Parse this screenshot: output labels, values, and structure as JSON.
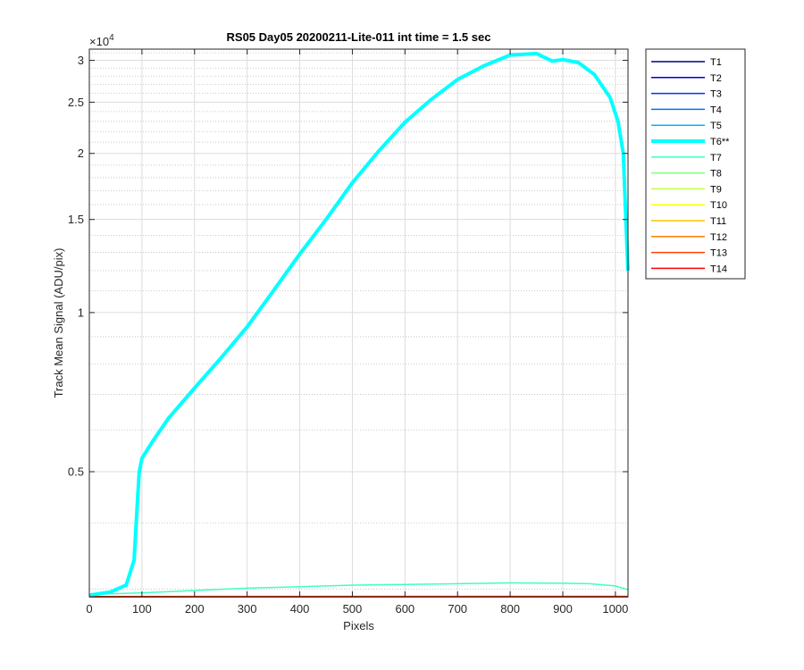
{
  "chart_data": {
    "type": "line",
    "title": "RS05 Day05 20200211-Lite-011 int time = 1.5 sec",
    "xlabel": "Pixels",
    "ylabel": "Track Mean Signal (ADU/pix)",
    "y_exponent_label": "×10",
    "y_exponent_power": "4",
    "y_scale": "log",
    "xlim": [
      0,
      1024
    ],
    "ylim": [
      2900,
      31500
    ],
    "x_ticks": [
      0,
      100,
      200,
      300,
      400,
      500,
      600,
      700,
      800,
      900,
      1000
    ],
    "x_tick_labels": [
      "0",
      "100",
      "200",
      "300",
      "400",
      "500",
      "600",
      "700",
      "800",
      "900",
      "1000"
    ],
    "y_ticks": [
      5000,
      10000,
      15000,
      20000,
      25000,
      30000
    ],
    "y_tick_labels": [
      "0.5",
      "1",
      "1.5",
      "2",
      "2.5",
      "3"
    ],
    "grid": true,
    "minor_grid": true,
    "legend_position": "outside-right",
    "series": [
      {
        "name": "T1",
        "color": "#00007f",
        "width": 1.5,
        "x": [
          0,
          1024
        ],
        "y": [
          2900,
          2900
        ]
      },
      {
        "name": "T2",
        "color": "#0000c8",
        "width": 1.5,
        "x": [
          0,
          1024
        ],
        "y": [
          2900,
          2900
        ]
      },
      {
        "name": "T3",
        "color": "#0032ff",
        "width": 1.5,
        "x": [
          0,
          1024
        ],
        "y": [
          2900,
          2900
        ]
      },
      {
        "name": "T4",
        "color": "#0070ff",
        "width": 1.5,
        "x": [
          0,
          1024
        ],
        "y": [
          2900,
          2900
        ]
      },
      {
        "name": "T5",
        "color": "#00b4ff",
        "width": 1.5,
        "x": [
          0,
          1024
        ],
        "y": [
          2900,
          2900
        ]
      },
      {
        "name": "T6**",
        "color": "#00ffff",
        "width": 4,
        "x": [
          0,
          40,
          70,
          85,
          92,
          95,
          100,
          120,
          150,
          200,
          250,
          300,
          350,
          400,
          450,
          500,
          550,
          600,
          650,
          700,
          750,
          800,
          850,
          880,
          900,
          930,
          960,
          990,
          1005,
          1015,
          1020,
          1024
        ],
        "y": [
          2920,
          2960,
          3050,
          3400,
          4500,
          5000,
          5300,
          5700,
          6300,
          7200,
          8200,
          9400,
          11000,
          12900,
          15000,
          17600,
          20200,
          22900,
          25300,
          27600,
          29300,
          30700,
          30900,
          29900,
          30100,
          29700,
          28200,
          25500,
          23000,
          20000,
          15000,
          12000
        ]
      },
      {
        "name": "T7",
        "color": "#40ffc0",
        "width": 1.5,
        "x": [
          0,
          100,
          200,
          300,
          400,
          500,
          600,
          700,
          800,
          900,
          950,
          1000,
          1024
        ],
        "y": [
          2930,
          2950,
          2980,
          3010,
          3030,
          3050,
          3060,
          3070,
          3080,
          3075,
          3070,
          3040,
          2990
        ]
      },
      {
        "name": "T8",
        "color": "#80ff80",
        "width": 1.5,
        "x": [
          0,
          1024
        ],
        "y": [
          2905,
          2910
        ]
      },
      {
        "name": "T9",
        "color": "#c0ff40",
        "width": 1.5,
        "x": [
          0,
          1024
        ],
        "y": [
          2903,
          2906
        ]
      },
      {
        "name": "T10",
        "color": "#ffff00",
        "width": 1.5,
        "x": [
          0,
          1024
        ],
        "y": [
          2902,
          2904
        ]
      },
      {
        "name": "T11",
        "color": "#ffc000",
        "width": 1.5,
        "x": [
          0,
          1024
        ],
        "y": [
          2901,
          2902
        ]
      },
      {
        "name": "T12",
        "color": "#ff7f00",
        "width": 1.5,
        "x": [
          0,
          1024
        ],
        "y": [
          2901,
          2901
        ]
      },
      {
        "name": "T13",
        "color": "#ff4000",
        "width": 1.5,
        "x": [
          0,
          1024
        ],
        "y": [
          2900,
          2900
        ]
      },
      {
        "name": "T14",
        "color": "#ff0000",
        "width": 1.5,
        "x": [
          0,
          1024
        ],
        "y": [
          2900,
          2900
        ]
      }
    ]
  }
}
